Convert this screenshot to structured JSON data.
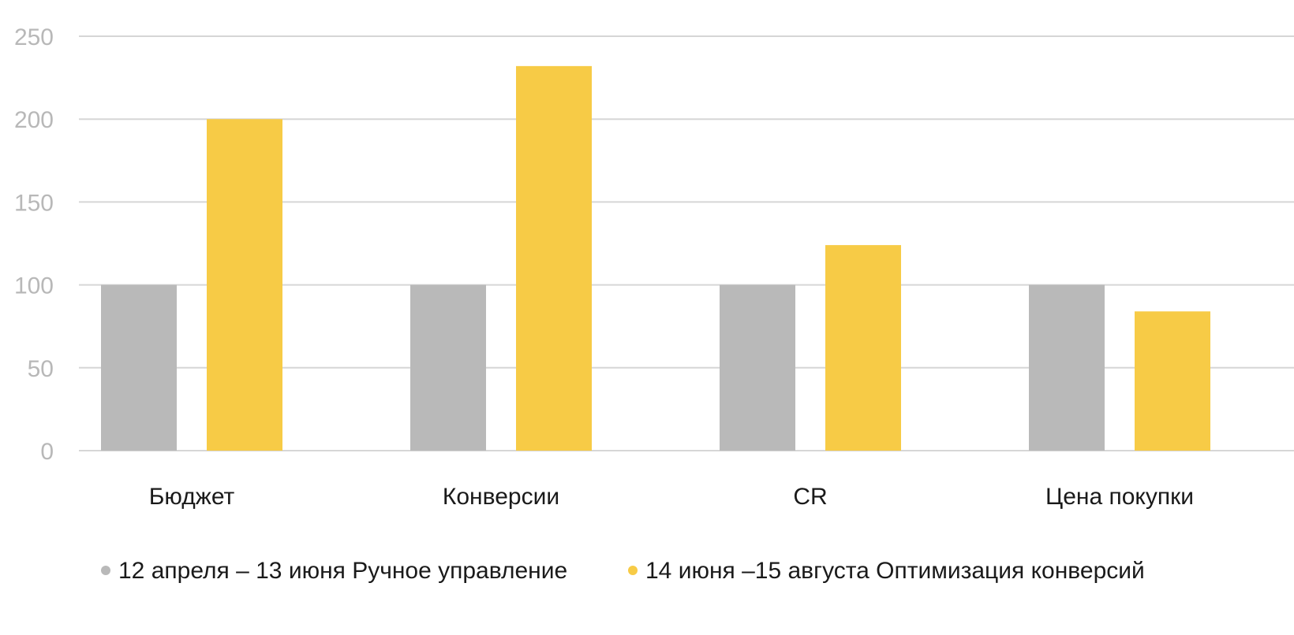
{
  "chart_data": {
    "type": "bar",
    "title": "",
    "xlabel": "",
    "ylabel": "",
    "ylim": [
      0,
      250
    ],
    "yticks": [
      0,
      50,
      100,
      150,
      200,
      250
    ],
    "grid": true,
    "legend_position": "bottom",
    "categories": [
      "Бюджет",
      "Конверсии",
      "CR",
      "Цена покупки"
    ],
    "series": [
      {
        "name": "12 апреля – 13 июня Ручное управление",
        "color": "#b9b9b9",
        "values": [
          100,
          100,
          100,
          100
        ]
      },
      {
        "name": "14 июня –15 августа Оптимизация конверсий",
        "color": "#f7cb46",
        "values": [
          200,
          232,
          124,
          84
        ]
      }
    ]
  }
}
